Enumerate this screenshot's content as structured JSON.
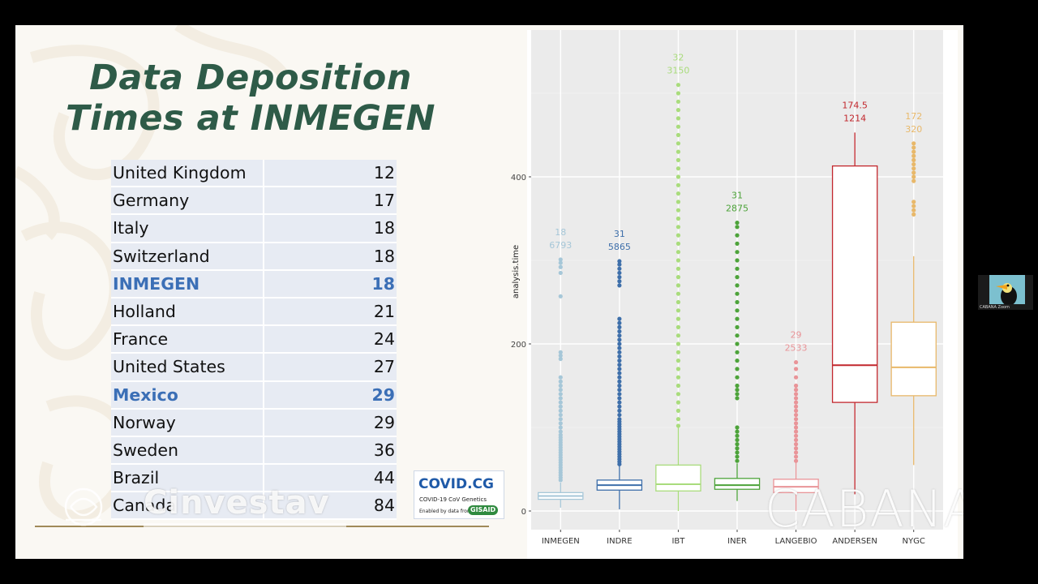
{
  "slide": {
    "title": "Data Deposition Times at INMEGEN",
    "table": [
      {
        "country": "United Kingdom",
        "value": "12",
        "highlight": false
      },
      {
        "country": "Germany",
        "value": "17",
        "highlight": false
      },
      {
        "country": "Italy",
        "value": "18",
        "highlight": false
      },
      {
        "country": "Switzerland",
        "value": "18",
        "highlight": false
      },
      {
        "country": "INMEGEN",
        "value": "18",
        "highlight": true
      },
      {
        "country": "Holland",
        "value": "21",
        "highlight": false
      },
      {
        "country": "France",
        "value": "24",
        "highlight": false
      },
      {
        "country": "United States",
        "value": "27",
        "highlight": false
      },
      {
        "country": "Mexico",
        "value": "29",
        "highlight": true
      },
      {
        "country": "Norway",
        "value": "29",
        "highlight": false
      },
      {
        "country": "Sweden",
        "value": "36",
        "highlight": false
      },
      {
        "country": "Brazil",
        "value": "44",
        "highlight": false
      },
      {
        "country": "Canada",
        "value": "84",
        "highlight": false
      }
    ],
    "highlight_color": "#3b6fb6",
    "title_color": "#2e5b48",
    "institution_logo": "Cinvestav",
    "covid_cg": {
      "name": "COVID.CG",
      "subtitle": "COVID-19 CoV Genetics",
      "enabled_text": "Enabled by data from",
      "gisaid": "GISAID"
    },
    "watermark": "CABANA"
  },
  "zoom": {
    "participant_label": "CABANA Zoom"
  },
  "chart_data": {
    "type": "box",
    "ylabel": "analysis.time",
    "ylim": [
      0,
      530
    ],
    "yticks": [
      0,
      200,
      400
    ],
    "grid": true,
    "categories": [
      "INMEGEN",
      "INDRE",
      "IBT",
      "INER",
      "LANGEBIO",
      "ANDERSEN",
      "NYGC"
    ],
    "series": [
      {
        "category": "INMEGEN",
        "median_label": "18",
        "n_label": "6793",
        "color": "#a6c7d8",
        "q1": 14,
        "median": 18,
        "q3": 22,
        "whisker_low": 4,
        "whisker_high": 34,
        "outliers": [
          37,
          40,
          43,
          46,
          49,
          52,
          55,
          58,
          61,
          64,
          67,
          70,
          73,
          76,
          79,
          82,
          85,
          88,
          91,
          95,
          100,
          105,
          110,
          115,
          120,
          125,
          130,
          135,
          140,
          145,
          150,
          155,
          160,
          182,
          186,
          190,
          257,
          285,
          292,
          297,
          301
        ]
      },
      {
        "category": "INDRE",
        "median_label": "31",
        "n_label": "5865",
        "color": "#3e6faa",
        "q1": 25,
        "median": 31,
        "q3": 37,
        "whisker_low": 2,
        "whisker_high": 54,
        "outliers": [
          56,
          59,
          62,
          65,
          68,
          71,
          74,
          77,
          80,
          83,
          86,
          89,
          92,
          95,
          98,
          101,
          104,
          107,
          110,
          115,
          120,
          125,
          130,
          135,
          140,
          145,
          150,
          155,
          160,
          165,
          170,
          175,
          180,
          185,
          190,
          195,
          200,
          205,
          210,
          215,
          220,
          225,
          230,
          270,
          275,
          280,
          285,
          290,
          295,
          299
        ]
      },
      {
        "category": "IBT",
        "median_label": "32",
        "n_label": "3150",
        "color": "#a9dc7c",
        "q1": 24,
        "median": 32,
        "q3": 55,
        "whisker_low": 0,
        "whisker_high": 100,
        "outliers": [
          102,
          110,
          120,
          130,
          140,
          150,
          160,
          170,
          180,
          190,
          200,
          210,
          220,
          230,
          240,
          250,
          260,
          270,
          280,
          290,
          300,
          310,
          320,
          330,
          340,
          350,
          360,
          370,
          380,
          390,
          400,
          410,
          420,
          430,
          440,
          450,
          460,
          470,
          480,
          490,
          500,
          510
        ]
      },
      {
        "category": "INER",
        "median_label": "31",
        "n_label": "2875",
        "color": "#4da33a",
        "q1": 26,
        "median": 31,
        "q3": 39,
        "whisker_low": 12,
        "whisker_high": 57,
        "outliers": [
          60,
          65,
          70,
          75,
          80,
          85,
          90,
          95,
          100,
          135,
          140,
          145,
          150,
          160,
          170,
          180,
          190,
          200,
          210,
          220,
          230,
          240,
          250,
          260,
          270,
          280,
          290,
          300,
          310,
          320,
          330,
          340,
          345
        ]
      },
      {
        "category": "LANGEBIO",
        "median_label": "29",
        "n_label": "2533",
        "color": "#e99498",
        "q1": 22,
        "median": 29,
        "q3": 38,
        "whisker_low": 0,
        "whisker_high": 58,
        "outliers": [
          60,
          65,
          70,
          75,
          80,
          85,
          90,
          95,
          100,
          105,
          110,
          115,
          120,
          125,
          130,
          135,
          140,
          145,
          150,
          160,
          170,
          178
        ]
      },
      {
        "category": "ANDERSEN",
        "median_label": "174.5",
        "n_label": "1214",
        "color": "#c2272d",
        "q1": 130,
        "median": 174.5,
        "q3": 413,
        "whisker_low": 20,
        "whisker_high": 453,
        "outliers": []
      },
      {
        "category": "NYGC",
        "median_label": "172",
        "n_label": "320",
        "color": "#e8b86a",
        "q1": 138,
        "median": 172,
        "q3": 226,
        "whisker_low": 55,
        "whisker_high": 305,
        "outliers": [
          355,
          360,
          365,
          370,
          395,
          400,
          405,
          410,
          415,
          420,
          425,
          430,
          435,
          440
        ]
      }
    ]
  }
}
